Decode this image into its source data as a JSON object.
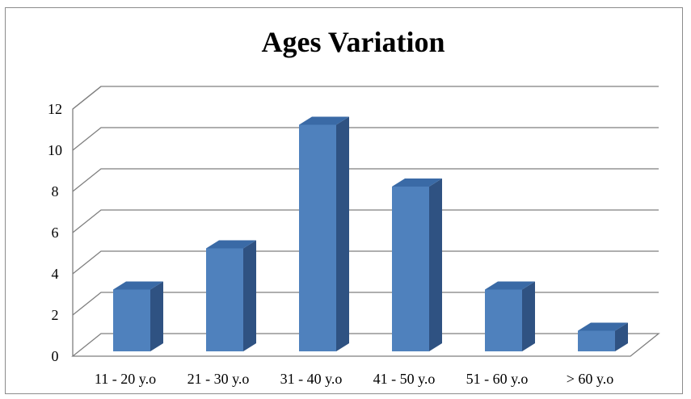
{
  "chart_data": {
    "type": "bar",
    "title": "Ages Variation",
    "xlabel": "",
    "ylabel": "",
    "categories": [
      "11 - 20 y.o",
      "21 - 30 y.o",
      "31 - 40 y.o",
      "41 - 50 y.o",
      "51 - 60 y.o",
      "> 60 y.o"
    ],
    "values": [
      3,
      5,
      11,
      8,
      3,
      1
    ],
    "ylim": [
      0,
      12
    ],
    "yticks": [
      0,
      2,
      4,
      6,
      8,
      10,
      12
    ],
    "grid": true,
    "legend": "none",
    "style": "3d-column",
    "colors": {
      "bar_front": "#4f81bd",
      "bar_top": "#3a6aa6",
      "bar_side": "#2f5282",
      "gridline": "#7f7f7f",
      "frame": "#8c8c8c"
    }
  }
}
